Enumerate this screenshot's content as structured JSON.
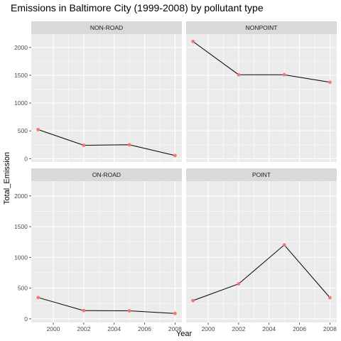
{
  "chart_data": {
    "type": "line",
    "title": "Emissions in Baltimore City (1999-2008) by pollutant type",
    "xlabel": "Year",
    "ylabel": "Total_Emission",
    "x": [
      1999,
      2002,
      2005,
      2008
    ],
    "x_ticks": [
      2000,
      2002,
      2004,
      2006,
      2008
    ],
    "x_tick_labels": [
      "2000",
      "2002",
      "2004",
      "2006",
      "2008"
    ],
    "xlim": [
      1998.55,
      2008.45
    ],
    "y_ticks": [
      0,
      500,
      1000,
      1500,
      2000
    ],
    "y_tick_labels": [
      "0",
      "500",
      "1000",
      "1500",
      "2000"
    ],
    "ylim": [
      -60,
      2240
    ],
    "grid": true,
    "facets": [
      {
        "name": "NON-ROAD",
        "values": [
          522.9,
          240.8,
          248.9,
          55.8
        ]
      },
      {
        "name": "NONPOINT",
        "values": [
          2107.6,
          1509.5,
          1509.5,
          1373.2
        ]
      },
      {
        "name": "ON-ROAD",
        "values": [
          346.8,
          134.3,
          130.4,
          88.3
        ]
      },
      {
        "name": "POINT",
        "values": [
          296.8,
          569.3,
          1202.5,
          344.98
        ]
      }
    ],
    "colors": {
      "panel_bg": "#ebebeb",
      "grid": "#ffffff",
      "strip_bg": "#d9d9d9",
      "line": "#000000",
      "point": "#f8766d"
    }
  }
}
